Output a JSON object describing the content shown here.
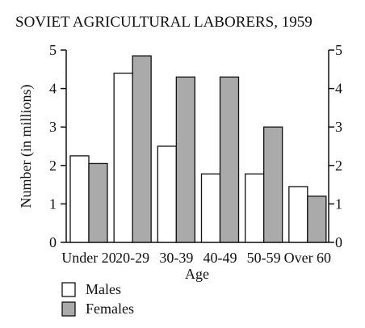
{
  "chart_data": {
    "type": "bar",
    "title": "SOVIET AGRICULTURAL LABORERS, 1959",
    "xlabel": "Age",
    "ylabel": "Number (in millions)",
    "ylim": [
      0,
      5
    ],
    "yticks": [
      "0",
      "1",
      "2",
      "3",
      "4",
      "5"
    ],
    "categories": [
      "Under 20",
      "20-29",
      "30-39",
      "40-49",
      "50-59",
      "Over 60"
    ],
    "series": [
      {
        "name": "Males",
        "color": "#ffffff",
        "values": [
          2.25,
          4.4,
          2.5,
          1.78,
          1.78,
          1.45
        ]
      },
      {
        "name": "Females",
        "color": "#aaaaaa",
        "values": [
          2.05,
          4.85,
          4.3,
          4.3,
          3.0,
          1.2
        ]
      }
    ],
    "legend_position": "bottom-left",
    "grid": false
  }
}
